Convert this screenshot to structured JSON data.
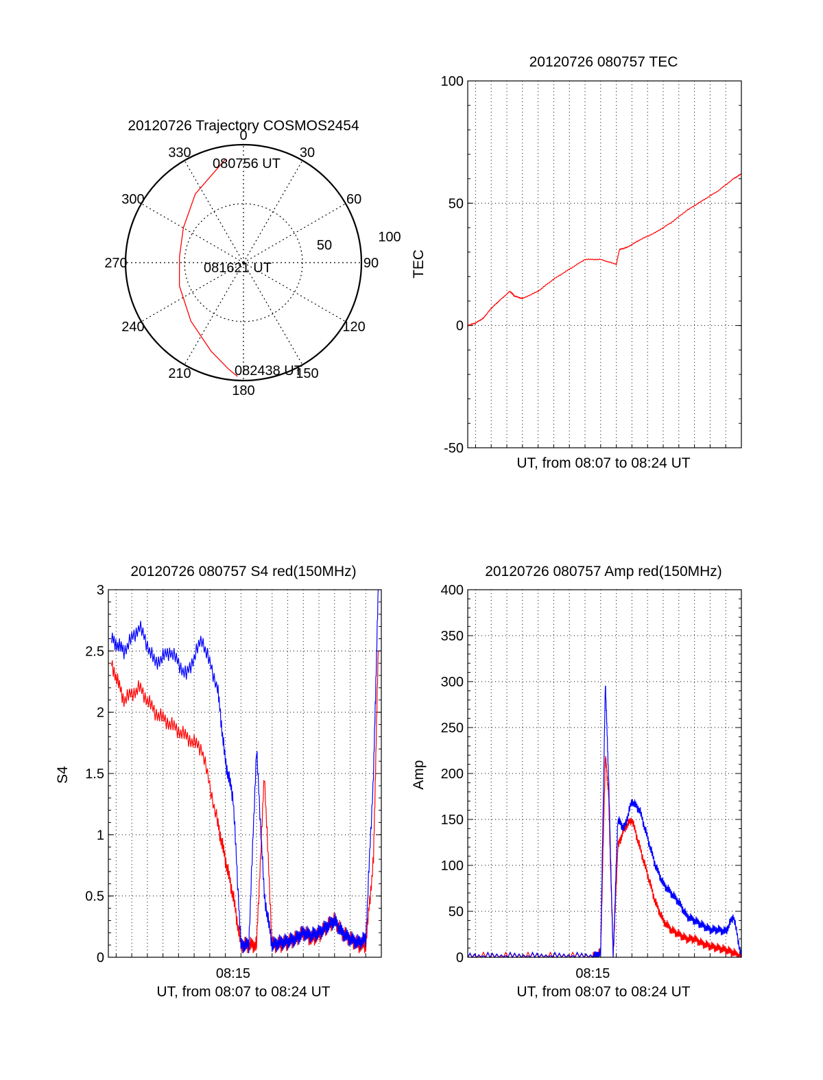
{
  "chart_data": [
    {
      "type": "polar",
      "title": "20120726 Trajectory COSMOS2454",
      "azimuth_labels": [
        "0",
        "30",
        "60",
        "90",
        "120",
        "150",
        "180",
        "210",
        "240",
        "270",
        "300",
        "330"
      ],
      "radial_labels": [
        "50",
        "100"
      ],
      "series": [
        {
          "color": "#ff0000",
          "points": [
            {
              "azimuth": 350,
              "elevation": 10
            },
            {
              "azimuth": 325,
              "elevation": 26
            },
            {
              "azimuth": 300,
              "elevation": 37
            },
            {
              "azimuth": 275,
              "elevation": 41
            },
            {
              "azimuth": 250,
              "elevation": 38
            },
            {
              "azimuth": 222,
              "elevation": 30
            },
            {
              "azimuth": 200,
              "elevation": 18
            },
            {
              "azimuth": 188,
              "elevation": 8
            },
            {
              "azimuth": 183,
              "elevation": 3
            }
          ]
        }
      ],
      "annotations": [
        "080756 UT",
        "081621 UT",
        "082438 UT"
      ]
    },
    {
      "type": "line",
      "title": "20120726 080757 TEC",
      "xlabel": "UT, from 08:07 to 08:24 UT",
      "ylabel": "TEC",
      "xlim": [
        0,
        17.5
      ],
      "ylim": [
        -50,
        100
      ],
      "yticks": [
        "-50",
        "0",
        "50",
        "100"
      ],
      "grid": true,
      "series": [
        {
          "color": "#ff0000",
          "x": [
            0,
            0.5,
            1.0,
            1.5,
            2.0,
            2.7,
            3.0,
            3.5,
            4.5,
            5.5,
            6.5,
            7.5,
            8.5,
            9.5,
            9.7,
            10.2,
            11.0,
            12.0,
            13.0,
            14.0,
            15.0,
            16.0,
            17.0,
            17.5
          ],
          "y": [
            0,
            1,
            3,
            7,
            10,
            14,
            12,
            11,
            14,
            19,
            23,
            27,
            27,
            25,
            31,
            32,
            35,
            38,
            42,
            47,
            51,
            55,
            60,
            62
          ]
        }
      ]
    },
    {
      "type": "line",
      "title": "20120726 080757 S4 red(150MHz)",
      "xlabel": "UT, from 08:07 to 08:24 UT",
      "ylabel": "S4",
      "xlim": [
        0,
        17.5
      ],
      "ylim": [
        0,
        3
      ],
      "xticks": [
        "08:15"
      ],
      "yticks": [
        "0",
        "0.5",
        "1",
        "1.5",
        "2",
        "2.5",
        "3"
      ],
      "grid": true,
      "series": [
        {
          "color": "#ff0000",
          "x": [
            0.2,
            1.0,
            2.0,
            3.0,
            4.0,
            5.0,
            6.0,
            7.0,
            7.5,
            8.0,
            8.5,
            9.0,
            9.5,
            10.0,
            10.5,
            11.0,
            11.5,
            12.0,
            12.5,
            13.0,
            13.5,
            14.0,
            14.5,
            15.0,
            15.5,
            16.0,
            16.5,
            17.0,
            17.3
          ],
          "y": [
            2.4,
            2.1,
            2.2,
            2.0,
            1.9,
            1.8,
            1.7,
            1.1,
            0.8,
            0.5,
            0.1,
            0.1,
            0.1,
            1.5,
            0.1,
            0.1,
            0.12,
            0.15,
            0.2,
            0.15,
            0.18,
            0.25,
            0.3,
            0.2,
            0.15,
            0.1,
            0.1,
            0.8,
            2.5
          ]
        },
        {
          "color": "#0000ff",
          "x": [
            0.2,
            1.0,
            2.0,
            3.0,
            4.0,
            5.0,
            6.0,
            7.0,
            7.5,
            8.0,
            8.5,
            9.0,
            9.5,
            10.0,
            10.5,
            11.0,
            11.5,
            12.0,
            12.5,
            13.0,
            13.5,
            14.0,
            14.5,
            15.0,
            15.5,
            16.0,
            16.5,
            17.0,
            17.3
          ],
          "y": [
            2.6,
            2.5,
            2.7,
            2.4,
            2.5,
            2.3,
            2.6,
            2.2,
            1.6,
            1.3,
            0.1,
            0.1,
            1.7,
            0.5,
            0.1,
            0.12,
            0.13,
            0.15,
            0.2,
            0.18,
            0.2,
            0.25,
            0.3,
            0.2,
            0.15,
            0.12,
            0.15,
            1.5,
            3.0
          ]
        }
      ]
    },
    {
      "type": "line",
      "title": "20120726 080757 Amp red(150MHz)",
      "xlabel": "UT, from 08:07 to 08:24 UT",
      "ylabel": "Amp",
      "xlim": [
        0,
        17.5
      ],
      "ylim": [
        0,
        400
      ],
      "xticks": [
        "08:15"
      ],
      "yticks": [
        "0",
        "50",
        "100",
        "150",
        "200",
        "250",
        "300",
        "350",
        "400"
      ],
      "grid": true,
      "series": [
        {
          "color": "#ff0000",
          "x": [
            0,
            2,
            4,
            6,
            8.0,
            8.5,
            8.8,
            9.0,
            9.3,
            9.6,
            10.0,
            10.5,
            11.0,
            11.5,
            12.0,
            12.5,
            13.0,
            13.5,
            14.0,
            14.5,
            15.0,
            15.5,
            16.0,
            16.5,
            17.0,
            17.5
          ],
          "y": [
            0,
            0,
            0,
            0,
            0,
            5,
            220,
            180,
            0,
            120,
            140,
            150,
            120,
            90,
            60,
            40,
            30,
            25,
            20,
            20,
            15,
            12,
            10,
            8,
            5,
            0
          ]
        },
        {
          "color": "#0000ff",
          "x": [
            0,
            2,
            4,
            6,
            8.0,
            8.5,
            8.8,
            9.0,
            9.3,
            9.6,
            10.0,
            10.5,
            11.0,
            11.5,
            12.0,
            12.5,
            13.0,
            13.5,
            14.0,
            14.5,
            15.0,
            15.5,
            16.0,
            16.5,
            17.0,
            17.5
          ],
          "y": [
            0,
            0,
            0,
            0,
            0,
            5,
            300,
            200,
            0,
            150,
            140,
            170,
            160,
            130,
            100,
            80,
            70,
            60,
            45,
            40,
            35,
            30,
            30,
            28,
            45,
            0
          ]
        }
      ]
    }
  ]
}
